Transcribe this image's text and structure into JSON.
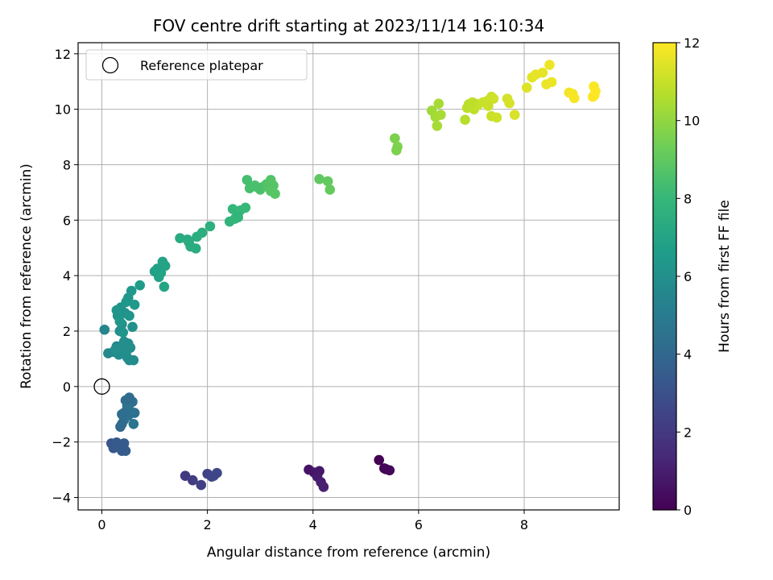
{
  "chart_data": {
    "type": "scatter",
    "title": "FOV centre drift starting at 2023/11/14 16:10:34",
    "xlabel": "Angular distance from reference (arcmin)",
    "ylabel": "Rotation from reference (arcmin)",
    "xlim": [
      -0.45,
      9.8
    ],
    "ylim": [
      -4.45,
      12.4
    ],
    "xticks": [
      0,
      2,
      4,
      6,
      8
    ],
    "yticks": [
      -4,
      -2,
      0,
      2,
      4,
      6,
      8,
      10,
      12
    ],
    "xtick_labels": [
      "0",
      "2",
      "4",
      "6",
      "8"
    ],
    "ytick_labels": [
      "−4",
      "−2",
      "0",
      "2",
      "4",
      "6",
      "8",
      "10",
      "12"
    ],
    "grid": true,
    "legend": {
      "placement": "upper-left",
      "entries": [
        "Reference platepar"
      ]
    },
    "reference_point": {
      "x": 0,
      "y": 0,
      "marker": "hollow-circle"
    },
    "colorbar": {
      "label": "Hours from first FF file",
      "colormap": "viridis",
      "range": [
        0,
        12
      ],
      "ticks": [
        0,
        2,
        4,
        6,
        8,
        10,
        12
      ],
      "tick_labels": [
        "0",
        "2",
        "4",
        "6",
        "8",
        "10",
        "12"
      ]
    },
    "series": [
      {
        "x": [
          5.25,
          5.35,
          5.45,
          5.38,
          3.92,
          4.02,
          4.12,
          4.08,
          4.15,
          4.2,
          1.58,
          1.72,
          1.88,
          2.0,
          2.08,
          2.18,
          2.12,
          0.18,
          0.22,
          0.28,
          0.38,
          0.42,
          0.45,
          0.36
        ],
        "y": [
          -2.65,
          -2.95,
          -3.02,
          -2.98,
          -3.0,
          -3.1,
          -3.05,
          -3.25,
          -3.45,
          -3.62,
          -3.22,
          -3.38,
          -3.55,
          -3.15,
          -3.25,
          -3.12,
          -3.22,
          -2.05,
          -2.22,
          -2.02,
          -2.32,
          -2.05,
          -2.32,
          -2.22
        ],
        "hours": [
          0.05,
          0.15,
          0.25,
          0.2,
          0.6,
          0.7,
          0.8,
          0.9,
          1.0,
          1.05,
          2.0,
          2.15,
          2.3,
          2.4,
          2.5,
          2.6,
          2.55,
          3.2,
          3.3,
          3.35,
          3.4,
          3.45,
          3.5,
          3.38
        ]
      },
      {
        "x": [
          0.35,
          0.38,
          0.45,
          0.52,
          0.58,
          0.62,
          0.42,
          0.5,
          0.55,
          0.48,
          0.38,
          0.6,
          0.5,
          0.42
        ],
        "y": [
          -1.45,
          -1.0,
          -0.5,
          -0.4,
          -0.55,
          -0.95,
          -1.2,
          -1.05,
          -0.9,
          -0.7,
          -1.35,
          -1.35,
          -0.45,
          -0.95
        ],
        "hours": [
          4.0,
          4.1,
          4.2,
          4.25,
          4.3,
          4.35,
          4.4,
          4.45,
          4.5,
          4.55,
          4.15,
          4.6,
          4.22,
          4.3
        ]
      },
      {
        "x": [
          0.05,
          0.12,
          0.22,
          0.28,
          0.32,
          0.4,
          0.46,
          0.54,
          0.6,
          0.5,
          0.42,
          0.34,
          0.26,
          0.38,
          0.48,
          0.58,
          0.3,
          0.44,
          0.36,
          0.52,
          0.28,
          0.4,
          0.46,
          0.34,
          0.5,
          0.56,
          0.62,
          0.72,
          0.52,
          0.44
        ],
        "y": [
          2.05,
          1.2,
          1.25,
          1.45,
          1.15,
          1.3,
          1.25,
          1.4,
          0.95,
          1.55,
          1.62,
          2.0,
          1.35,
          2.25,
          1.05,
          2.15,
          2.55,
          2.65,
          2.85,
          2.55,
          2.75,
          1.95,
          3.05,
          2.35,
          3.2,
          3.45,
          2.95,
          3.65,
          0.95,
          1.22
        ],
        "hours": [
          5.5,
          5.6,
          5.65,
          5.7,
          5.75,
          5.8,
          5.82,
          5.85,
          5.88,
          5.9,
          5.92,
          5.95,
          5.98,
          6.0,
          6.02,
          6.05,
          6.1,
          6.12,
          6.15,
          6.2,
          6.22,
          6.25,
          6.3,
          6.32,
          6.35,
          6.4,
          6.45,
          6.6,
          5.87,
          5.93
        ]
      },
      {
        "x": [
          1.0,
          1.05,
          1.08,
          1.15,
          1.2,
          1.18,
          1.12,
          1.48,
          1.62,
          1.68,
          1.8,
          1.78,
          1.65,
          1.9,
          2.05,
          2.42,
          2.52,
          2.58,
          2.48,
          2.62,
          2.72,
          2.58
        ],
        "y": [
          4.15,
          4.25,
          3.95,
          4.5,
          4.35,
          3.6,
          4.1,
          5.35,
          5.3,
          5.05,
          5.4,
          4.98,
          5.2,
          5.55,
          5.78,
          5.95,
          6.05,
          6.25,
          6.4,
          6.35,
          6.45,
          6.1
        ],
        "hours": [
          6.8,
          6.85,
          6.9,
          6.95,
          7.0,
          7.05,
          6.92,
          7.3,
          7.35,
          7.4,
          7.45,
          7.42,
          7.38,
          7.5,
          7.55,
          7.8,
          7.85,
          7.9,
          7.95,
          8.0,
          8.05,
          7.88
        ]
      },
      {
        "x": [
          2.75,
          2.8,
          2.9,
          3.0,
          3.05,
          3.12,
          3.2,
          3.25,
          3.15,
          3.2,
          3.28,
          2.95,
          4.12,
          4.28,
          4.32,
          5.55,
          5.6,
          5.58
        ],
        "y": [
          7.45,
          7.15,
          7.25,
          7.1,
          7.2,
          7.3,
          7.45,
          7.25,
          7.2,
          7.05,
          6.95,
          7.18,
          7.48,
          7.4,
          7.1,
          8.95,
          8.65,
          8.52
        ],
        "hours": [
          8.4,
          8.45,
          8.5,
          8.55,
          8.6,
          8.65,
          8.7,
          8.75,
          8.72,
          8.8,
          8.85,
          8.52,
          9.0,
          9.05,
          9.1,
          9.6,
          9.65,
          9.62
        ]
      },
      {
        "x": [
          6.25,
          6.32,
          6.38,
          6.42,
          6.35,
          6.88,
          6.92,
          6.98,
          7.05,
          7.08,
          7.12,
          7.22,
          7.3,
          7.38,
          7.42,
          7.38,
          7.48,
          7.32,
          7.68,
          7.72,
          7.82,
          6.95,
          7.02
        ],
        "y": [
          9.95,
          9.72,
          10.2,
          9.8,
          9.4,
          9.62,
          10.05,
          10.1,
          10.0,
          10.2,
          10.15,
          10.25,
          10.3,
          10.45,
          10.38,
          9.75,
          9.7,
          10.12,
          10.38,
          10.22,
          9.8,
          10.18,
          10.25
        ],
        "hours": [
          10.3,
          10.35,
          10.4,
          10.42,
          10.38,
          10.7,
          10.75,
          10.8,
          10.85,
          10.9,
          10.95,
          11.0,
          11.05,
          11.1,
          11.15,
          11.08,
          11.12,
          11.02,
          11.2,
          11.25,
          11.3,
          10.78,
          10.82
        ]
      },
      {
        "x": [
          8.05,
          8.15,
          8.22,
          8.35,
          8.42,
          8.48,
          8.52,
          8.85,
          8.92,
          8.95,
          9.32,
          9.35,
          9.33,
          9.3
        ],
        "y": [
          10.78,
          11.15,
          11.25,
          11.32,
          10.9,
          11.6,
          10.98,
          10.6,
          10.55,
          10.4,
          10.82,
          10.65,
          10.5,
          10.45
        ],
        "hours": [
          11.4,
          11.5,
          11.55,
          11.6,
          11.65,
          11.7,
          11.68,
          11.8,
          11.85,
          11.88,
          11.95,
          11.97,
          11.98,
          12.0
        ]
      }
    ]
  }
}
